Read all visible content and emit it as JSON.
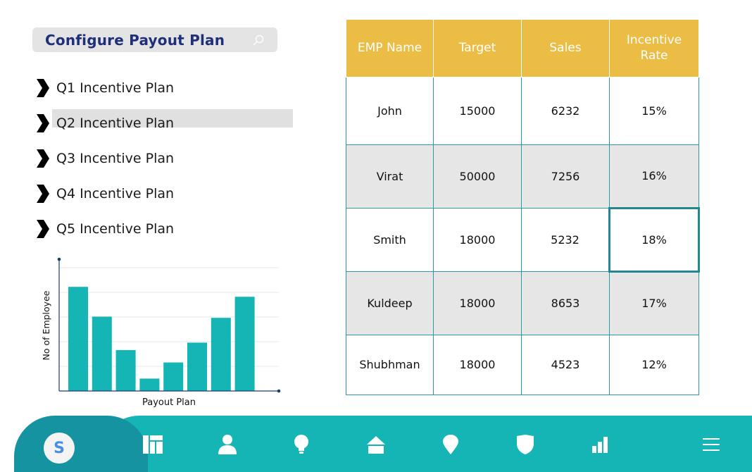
{
  "header": {
    "title": "Configure Payout Plan",
    "search_icon": "search-icon"
  },
  "plans": [
    {
      "label": "Q1 Incentive Plan",
      "selected": false
    },
    {
      "label": "Q2 Incentive Plan",
      "selected": true
    },
    {
      "label": "Q3 Incentive Plan",
      "selected": false
    },
    {
      "label": "Q4 Incentive Plan",
      "selected": false
    },
    {
      "label": "Q5 Incentive Plan",
      "selected": false
    }
  ],
  "chart_data": {
    "type": "bar",
    "title": "",
    "xlabel": "Payout Plan",
    "ylabel": "No of Employee",
    "categories": [
      "",
      "",
      "",
      "",
      "",
      "",
      "",
      ""
    ],
    "values": [
      4.2,
      3.0,
      1.65,
      0.5,
      1.15,
      1.95,
      2.95,
      3.8
    ],
    "ylim": [
      0,
      5.2
    ],
    "grid": true,
    "bar_color": "#16b5b5"
  },
  "table": {
    "headers": [
      "EMP Name",
      "Target",
      "Sales",
      "Incentive Rate"
    ],
    "rows": [
      [
        "John",
        "15000",
        "6232",
        "15%"
      ],
      [
        "Virat",
        "50000",
        "7256",
        "16%"
      ],
      [
        "Smith",
        "18000",
        "5232",
        "18%"
      ],
      [
        "Kuldeep",
        "18000",
        "8653",
        "17%"
      ],
      [
        "Shubhman",
        "18000",
        "4523",
        "12%"
      ]
    ],
    "focused_cell": {
      "row": 2,
      "col": 3
    },
    "header_color": "#ebbd45",
    "border_color": "#2a9aa3"
  },
  "nav": {
    "avatar_initial": "S",
    "items": [
      "dashboard-icon",
      "user-icon",
      "lightbulb-icon",
      "home-icon",
      "location-pin-icon",
      "shield-icon",
      "bar-chart-icon",
      "menu-icon"
    ],
    "accent": "#16b5b5",
    "home_accent": "#1693a0"
  }
}
